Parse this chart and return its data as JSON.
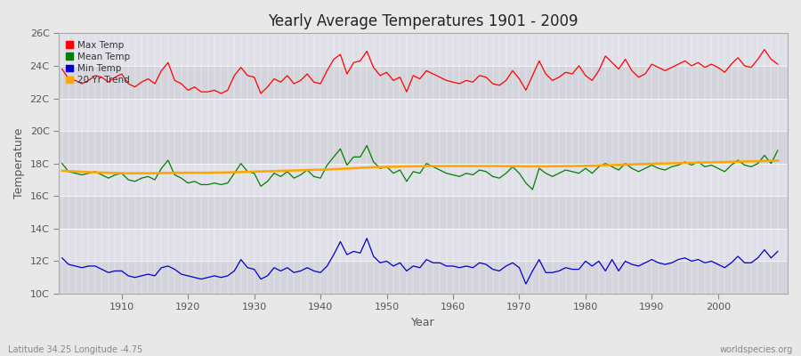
{
  "title": "Yearly Average Temperatures 1901 - 2009",
  "xlabel": "Year",
  "ylabel": "Temperature",
  "lat_lon_text": "Latitude 34.25 Longitude -4.75",
  "watermark": "worldspecies.org",
  "year_start": 1901,
  "year_end": 2009,
  "ylim": [
    10,
    26
  ],
  "ytick_labels": [
    "10C",
    "12C",
    "14C",
    "16C",
    "18C",
    "20C",
    "22C",
    "24C",
    "26C"
  ],
  "ytick_values": [
    10,
    12,
    14,
    16,
    18,
    20,
    22,
    24,
    26
  ],
  "xtick_values": [
    1910,
    1920,
    1930,
    1940,
    1950,
    1960,
    1970,
    1980,
    1990,
    2000
  ],
  "colors": {
    "max_temp": "#ff0000",
    "mean_temp": "#008000",
    "min_temp": "#0000cc",
    "trend": "#ffa500",
    "fig_background": "#e8e8e8",
    "plot_background": "#e0e0e8",
    "grid_color": "#ffffff",
    "band_dark": "#d4d4dc",
    "band_light": "#e0e0e8"
  },
  "max_temp": [
    23.8,
    23.2,
    23.1,
    22.9,
    23.1,
    23.4,
    23.3,
    23.0,
    23.3,
    23.5,
    22.9,
    22.7,
    23.0,
    23.2,
    22.9,
    23.7,
    24.2,
    23.1,
    22.9,
    22.5,
    22.7,
    22.4,
    22.4,
    22.5,
    22.3,
    22.5,
    23.4,
    23.9,
    23.4,
    23.3,
    22.3,
    22.7,
    23.2,
    23.0,
    23.4,
    22.9,
    23.1,
    23.5,
    23.0,
    22.9,
    23.7,
    24.4,
    24.7,
    23.5,
    24.2,
    24.3,
    24.9,
    23.9,
    23.4,
    23.6,
    23.1,
    23.3,
    22.4,
    23.4,
    23.2,
    23.7,
    23.5,
    23.3,
    23.1,
    23.0,
    22.9,
    23.1,
    23.0,
    23.4,
    23.3,
    22.9,
    22.8,
    23.1,
    23.7,
    23.2,
    22.5,
    23.4,
    24.3,
    23.5,
    23.1,
    23.3,
    23.6,
    23.5,
    24.0,
    23.4,
    23.1,
    23.7,
    24.6,
    24.2,
    23.8,
    24.4,
    23.7,
    23.3,
    23.5,
    24.1,
    23.9,
    23.7,
    23.9,
    24.1,
    24.3,
    24.0,
    24.2,
    23.9,
    24.1,
    23.9,
    23.6,
    24.1,
    24.5,
    24.0,
    23.9,
    24.4,
    25.0,
    24.4,
    24.1
  ],
  "mean_temp": [
    18.0,
    17.5,
    17.4,
    17.3,
    17.4,
    17.5,
    17.3,
    17.1,
    17.3,
    17.4,
    17.0,
    16.9,
    17.1,
    17.2,
    17.0,
    17.7,
    18.2,
    17.3,
    17.1,
    16.8,
    16.9,
    16.7,
    16.7,
    16.8,
    16.7,
    16.8,
    17.4,
    18.0,
    17.5,
    17.4,
    16.6,
    16.9,
    17.4,
    17.2,
    17.5,
    17.1,
    17.3,
    17.6,
    17.2,
    17.1,
    17.9,
    18.4,
    18.9,
    17.9,
    18.4,
    18.4,
    19.1,
    18.1,
    17.7,
    17.8,
    17.4,
    17.6,
    16.9,
    17.5,
    17.4,
    18.0,
    17.8,
    17.6,
    17.4,
    17.3,
    17.2,
    17.4,
    17.3,
    17.6,
    17.5,
    17.2,
    17.1,
    17.4,
    17.8,
    17.4,
    16.8,
    16.4,
    17.7,
    17.4,
    17.2,
    17.4,
    17.6,
    17.5,
    17.4,
    17.7,
    17.4,
    17.8,
    18.0,
    17.8,
    17.6,
    18.0,
    17.7,
    17.5,
    17.7,
    17.9,
    17.7,
    17.6,
    17.8,
    17.9,
    18.1,
    17.9,
    18.1,
    17.8,
    17.9,
    17.7,
    17.5,
    17.9,
    18.2,
    17.9,
    17.8,
    18.0,
    18.5,
    18.0,
    18.8
  ],
  "min_temp": [
    12.2,
    11.8,
    11.7,
    11.6,
    11.7,
    11.7,
    11.5,
    11.3,
    11.4,
    11.4,
    11.1,
    11.0,
    11.1,
    11.2,
    11.1,
    11.6,
    11.7,
    11.5,
    11.2,
    11.1,
    11.0,
    10.9,
    11.0,
    11.1,
    11.0,
    11.1,
    11.4,
    12.1,
    11.6,
    11.5,
    10.9,
    11.1,
    11.6,
    11.4,
    11.6,
    11.3,
    11.4,
    11.6,
    11.4,
    11.3,
    11.7,
    12.4,
    13.2,
    12.4,
    12.6,
    12.5,
    13.4,
    12.3,
    11.9,
    12.0,
    11.7,
    11.9,
    11.4,
    11.7,
    11.6,
    12.1,
    11.9,
    11.9,
    11.7,
    11.7,
    11.6,
    11.7,
    11.6,
    11.9,
    11.8,
    11.5,
    11.4,
    11.7,
    11.9,
    11.6,
    10.6,
    11.4,
    12.1,
    11.3,
    11.3,
    11.4,
    11.6,
    11.5,
    11.5,
    12.0,
    11.7,
    12.0,
    11.4,
    12.1,
    11.4,
    12.0,
    11.8,
    11.7,
    11.9,
    12.1,
    11.9,
    11.8,
    11.9,
    12.1,
    12.2,
    12.0,
    12.1,
    11.9,
    12.0,
    11.8,
    11.6,
    11.9,
    12.3,
    11.9,
    11.9,
    12.2,
    12.7,
    12.2,
    12.6
  ],
  "trend_values": [
    17.55,
    17.53,
    17.51,
    17.49,
    17.47,
    17.45,
    17.44,
    17.43,
    17.42,
    17.41,
    17.4,
    17.4,
    17.4,
    17.4,
    17.4,
    17.41,
    17.42,
    17.43,
    17.43,
    17.43,
    17.43,
    17.43,
    17.43,
    17.44,
    17.44,
    17.45,
    17.46,
    17.47,
    17.48,
    17.5,
    17.51,
    17.52,
    17.53,
    17.55,
    17.56,
    17.57,
    17.58,
    17.6,
    17.61,
    17.62,
    17.63,
    17.65,
    17.67,
    17.69,
    17.71,
    17.73,
    17.75,
    17.77,
    17.78,
    17.79,
    17.8,
    17.81,
    17.82,
    17.82,
    17.83,
    17.83,
    17.84,
    17.84,
    17.84,
    17.84,
    17.84,
    17.84,
    17.84,
    17.84,
    17.84,
    17.84,
    17.84,
    17.83,
    17.83,
    17.83,
    17.82,
    17.82,
    17.82,
    17.82,
    17.83,
    17.83,
    17.84,
    17.84,
    17.85,
    17.86,
    17.87,
    17.88,
    17.89,
    17.9,
    17.91,
    17.93,
    17.94,
    17.96,
    17.97,
    17.98,
    17.99,
    18.0,
    18.01,
    18.02,
    18.03,
    18.04,
    18.05,
    18.06,
    18.07,
    18.08,
    18.09,
    18.1,
    18.11,
    18.12,
    18.13,
    18.14,
    18.15,
    18.16,
    18.17
  ]
}
